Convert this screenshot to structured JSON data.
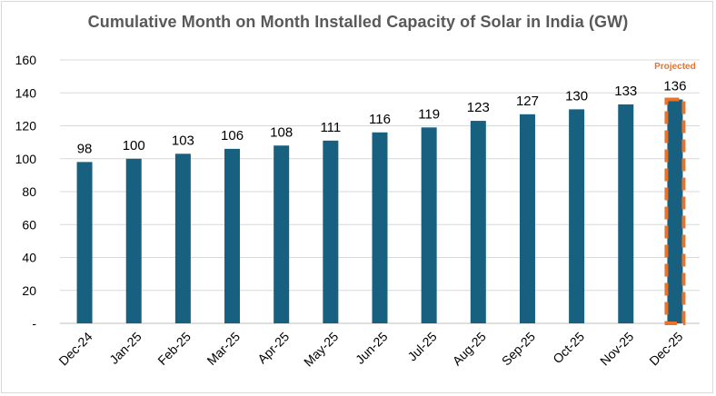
{
  "chart_data": {
    "type": "bar",
    "title": "Cumulative Month on Month Installed Capacity of Solar in India (GW)",
    "xlabel": "",
    "ylabel": "",
    "categories": [
      "Dec-24",
      "Jan-25",
      "Feb-25",
      "Mar-25",
      "Apr-25",
      "May-25",
      "Jun-25",
      "Jul-25",
      "Aug-25",
      "Sep-25",
      "Oct-25",
      "Nov-25",
      "Dec-25"
    ],
    "values": [
      98,
      100,
      103,
      106,
      108,
      111,
      116,
      119,
      123,
      127,
      130,
      133,
      136
    ],
    "ylim": [
      0,
      160
    ],
    "yticks": [
      0,
      20,
      40,
      60,
      80,
      100,
      120,
      140,
      160
    ],
    "ytick_labels": [
      "-",
      "20",
      "40",
      "60",
      "80",
      "100",
      "120",
      "140",
      "160"
    ],
    "grid": true,
    "bar_color": "#17607f",
    "projected": {
      "category": "Dec-25",
      "label": "Projected",
      "color": "#e8732d"
    }
  }
}
